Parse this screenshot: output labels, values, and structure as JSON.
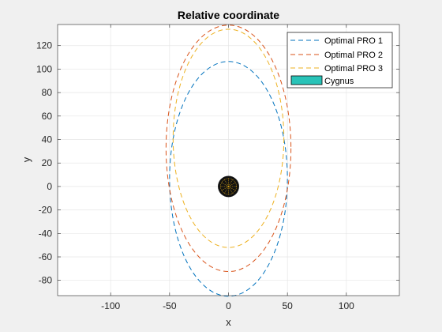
{
  "figure": {
    "background": "#f0f0f0",
    "axes_background": "#ffffff"
  },
  "chart_data": {
    "type": "line",
    "title": "Relative coordinate",
    "xlabel": "x",
    "ylabel": "y",
    "xlim": [
      -145,
      145
    ],
    "ylim": [
      -93,
      138
    ],
    "xticks": [
      -100,
      -50,
      0,
      50,
      100
    ],
    "xtick_labels": [
      "-100",
      "-50",
      "0",
      "50",
      "100"
    ],
    "yticks": [
      -80,
      -60,
      -40,
      -20,
      0,
      20,
      40,
      60,
      80,
      100,
      120
    ],
    "ytick_labels": [
      "-80",
      "-60",
      "-40",
      "-20",
      "0",
      "20",
      "40",
      "60",
      "80",
      "100",
      "120"
    ],
    "grid": true,
    "legend_position": "top-right",
    "series": [
      {
        "name": "Optimal PRO 1",
        "color": "#0072bd",
        "line_style": "dashed",
        "shape": "ellipse",
        "center": [
          0,
          6.5
        ],
        "semi_axis_x": 50,
        "semi_axis_y": 100
      },
      {
        "name": "Optimal PRO 2",
        "color": "#d95319",
        "line_style": "dashed",
        "shape": "ellipse",
        "center": [
          0,
          32.5
        ],
        "semi_axis_x": 53,
        "semi_axis_y": 105
      },
      {
        "name": "Optimal PRO 3",
        "color": "#edb120",
        "line_style": "dashed",
        "shape": "ellipse",
        "center": [
          0,
          41
        ],
        "semi_axis_x": 47,
        "semi_axis_y": 93
      }
    ],
    "target": {
      "name": "Cygnus",
      "legend_color": "#29c3b8",
      "center": [
        0,
        0
      ],
      "radius": 9,
      "fill": "#111111",
      "inner_color": "#d4a017"
    }
  }
}
